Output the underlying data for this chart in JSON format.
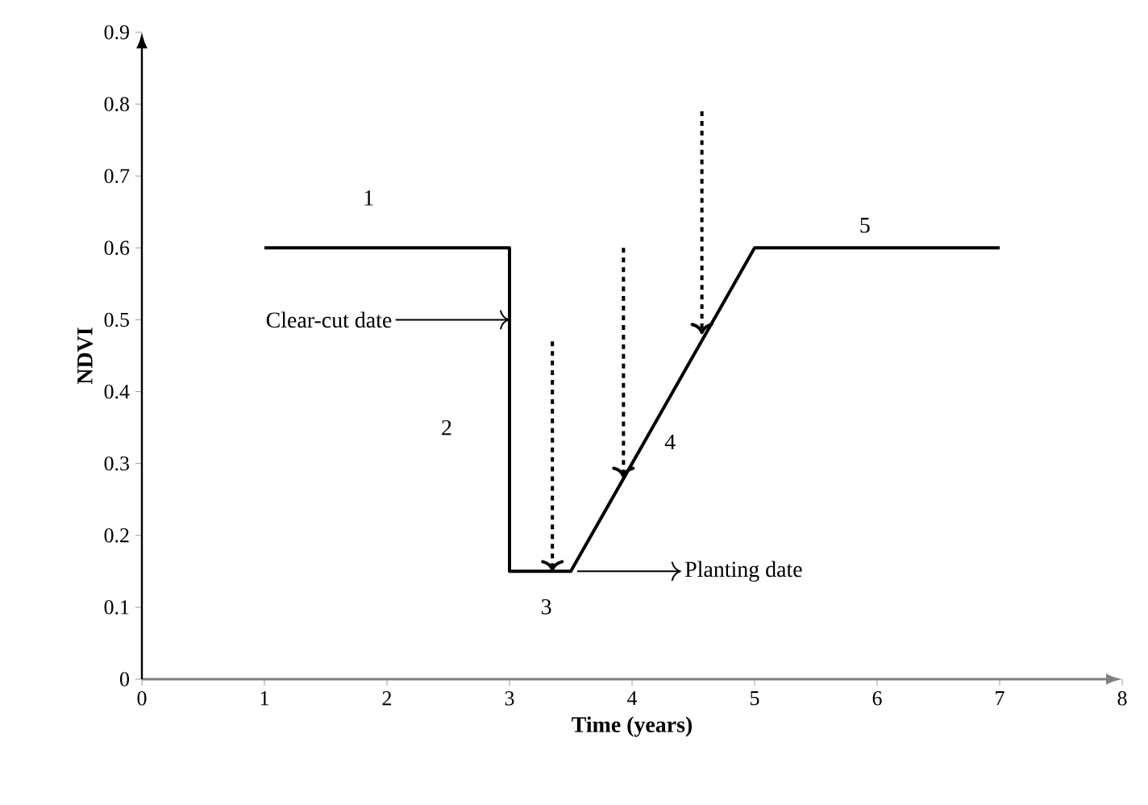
{
  "chart_data": {
    "type": "line",
    "xlabel": "Time (years)",
    "ylabel": "NDVI",
    "x": [
      1,
      3,
      3,
      3.5,
      5,
      7
    ],
    "series": [
      {
        "color": "#000000",
        "values": [
          0.6,
          0.6,
          0.15,
          0.15,
          0.6,
          0.6
        ]
      }
    ],
    "xlim": [
      0,
      8
    ],
    "ylim": [
      0,
      0.9
    ],
    "xticks": [
      0,
      1,
      2,
      3,
      4,
      5,
      6,
      7,
      8
    ],
    "yticks": [
      0,
      0.1,
      0.2,
      0.3,
      0.4,
      0.5,
      0.6,
      0.7,
      0.8,
      0.9
    ],
    "marker": "none",
    "line_style": "solid",
    "annotations": [
      {
        "text": "1",
        "x": 1.85,
        "y": 0.6
      },
      {
        "text": "2",
        "x": 3,
        "y": 0.35
      },
      {
        "text": "3",
        "x": 3.3,
        "y": 0.15
      },
      {
        "text": "4",
        "x": 4.1,
        "y": 0.33
      },
      {
        "text": "5",
        "x": 5.9,
        "y": 0.6
      },
      "Clear-cut date",
      "Planting date"
    ]
  }
}
